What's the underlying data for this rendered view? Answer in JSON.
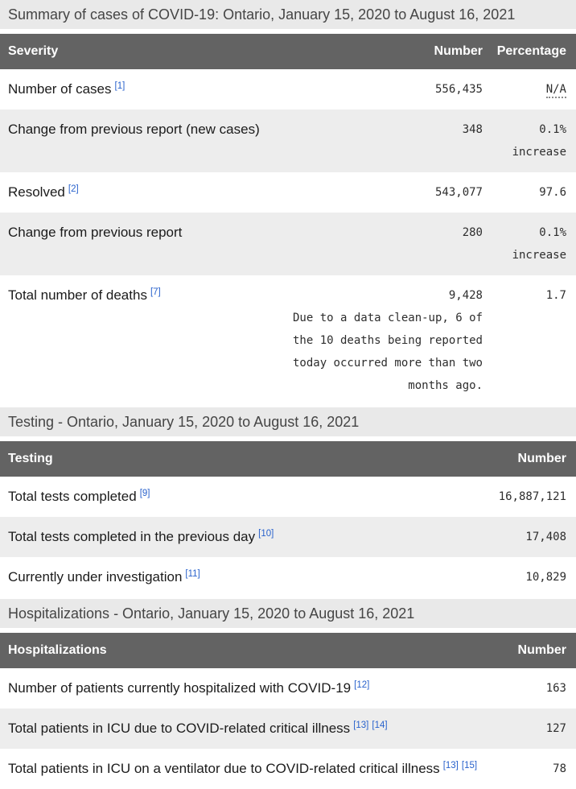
{
  "title": "Summary of cases of COVID-19: Ontario, January 15, 2020 to August 16, 2021",
  "colors": {
    "table_header_bg": "#636363",
    "table_header_text": "#ffffff",
    "stripe_row_bg": "#ededed",
    "section_bar_bg": "#e9e9e9",
    "footnote_link_blue": "#2962cc"
  },
  "severity_table": {
    "columns": [
      "Severity",
      "Number",
      "Percentage"
    ],
    "rows": [
      {
        "label": "Number of cases",
        "refs": [
          "[1]"
        ],
        "number": "556,435",
        "percentage": "N/A",
        "percentage_abbr": true
      },
      {
        "label": "Change from previous report (new cases)",
        "refs": [],
        "number": "348",
        "percentage": "0.1% increase"
      },
      {
        "label": "Resolved",
        "refs": [
          "[2]"
        ],
        "number": "543,077",
        "percentage": "97.6"
      },
      {
        "label": "Change from previous report",
        "refs": [],
        "number": "280",
        "percentage": "0.1% increase"
      },
      {
        "label": "Total number of deaths",
        "refs": [
          "[7]"
        ],
        "number": "9,428",
        "note": "Due to a data clean-up, 6 of the 10 deaths being reported today occurred more than two months ago.",
        "percentage": "1.7"
      }
    ]
  },
  "testing_section": {
    "heading": "Testing - Ontario, January 15, 2020 to August 16, 2021",
    "columns": [
      "Testing",
      "Number"
    ],
    "rows": [
      {
        "label": "Total tests completed",
        "refs": [
          "[9]"
        ],
        "number": "16,887,121"
      },
      {
        "label": "Total tests completed in the previous day",
        "refs": [
          "[10]"
        ],
        "number": "17,408"
      },
      {
        "label": "Currently under investigation",
        "refs": [
          "[11]"
        ],
        "number": "10,829"
      }
    ]
  },
  "hospitalizations_section": {
    "heading": "Hospitalizations - Ontario, January 15, 2020 to August 16, 2021",
    "columns": [
      "Hospitalizations",
      "Number"
    ],
    "rows": [
      {
        "label": "Number of patients currently hospitalized with COVID-19",
        "refs": [
          "[12]"
        ],
        "number": "163"
      },
      {
        "label": "Total patients in ICU due to COVID-related critical illness",
        "refs": [
          "[13]",
          "[14]"
        ],
        "number": "127"
      },
      {
        "label": "Total patients in ICU on a ventilator due to COVID-related critical illness",
        "refs": [
          "[13]",
          "[15]"
        ],
        "number": "78"
      }
    ]
  }
}
